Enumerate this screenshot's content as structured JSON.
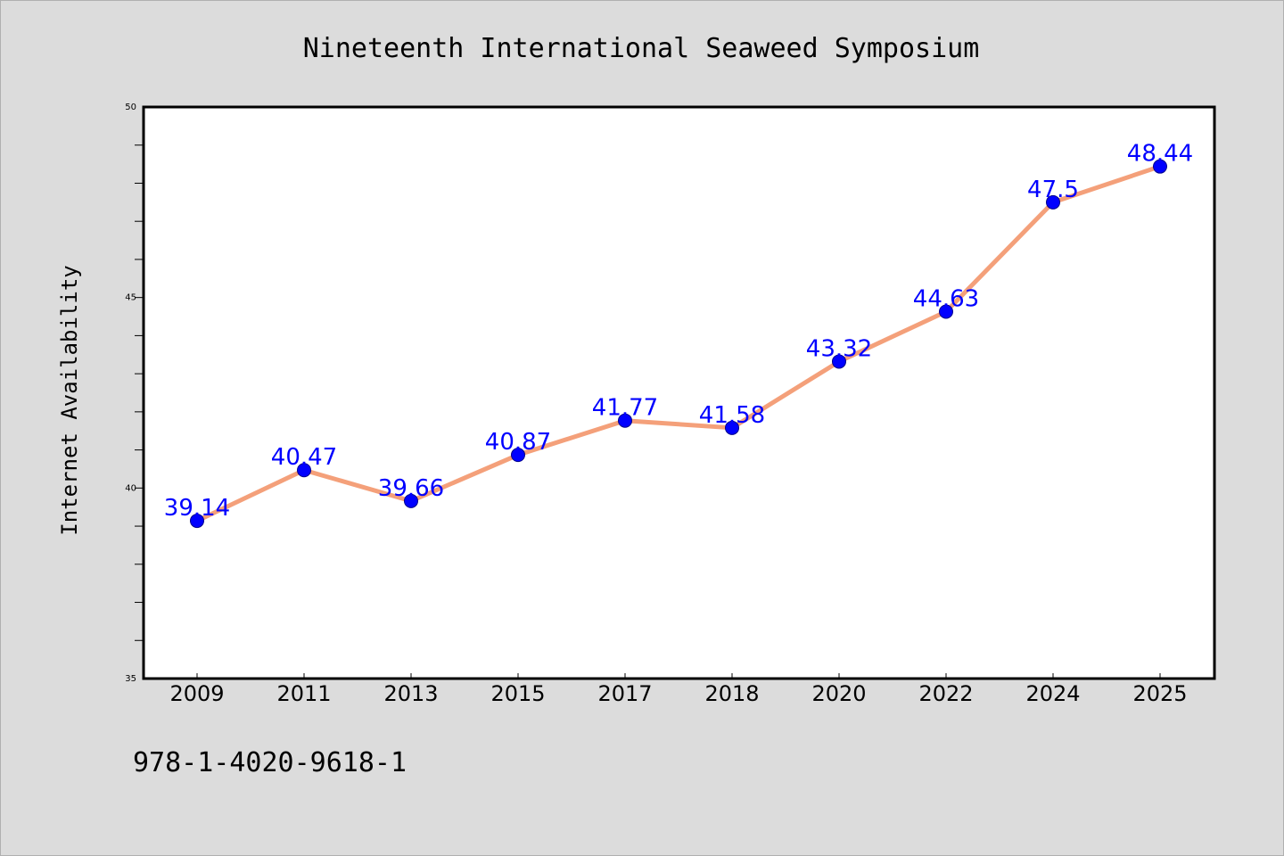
{
  "chart_data": {
    "type": "line",
    "title": "Nineteenth International Seaweed Symposium",
    "xlabel": "",
    "ylabel": "Internet Availability",
    "categories": [
      "2009",
      "2011",
      "2013",
      "2015",
      "2017",
      "2018",
      "2020",
      "2022",
      "2024",
      "2025"
    ],
    "values": [
      39.14,
      40.47,
      39.66,
      40.87,
      41.77,
      41.58,
      43.32,
      44.63,
      47.5,
      48.44
    ],
    "data_labels": [
      "39.14",
      "40.47",
      "39.66",
      "40.87",
      "41.77",
      "41.58",
      "43.32",
      "44.63",
      "47.5",
      "48.44"
    ],
    "ylim": [
      35,
      50
    ],
    "yticks": [
      "35",
      "40",
      "45",
      "50"
    ],
    "grid": false,
    "legend": "none",
    "colors": {
      "line": "#f4a07a",
      "marker": "#0000ff",
      "marker_edge": "#00008b",
      "label": "#0000ff",
      "background": "#dcdcdc",
      "plot_area": "#ffffff"
    }
  },
  "footer": {
    "text": "978-1-4020-9618-1"
  }
}
